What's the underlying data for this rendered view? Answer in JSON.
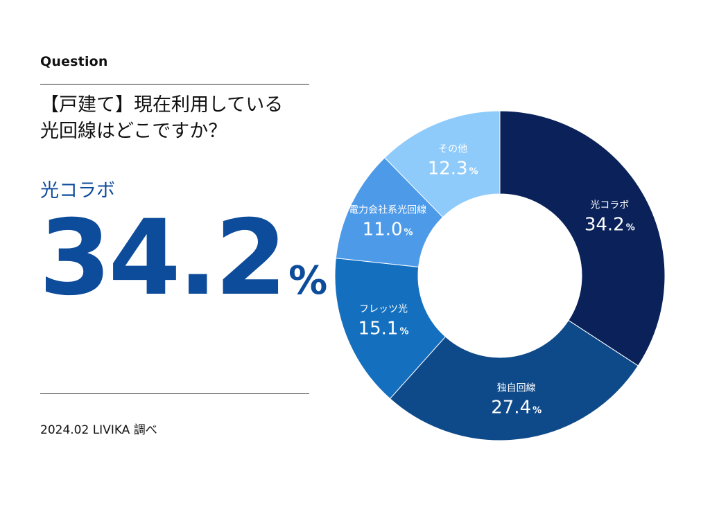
{
  "eyebrow": "Question",
  "question": {
    "line1": "【戸建て】現在利用している",
    "line2": "光回線はどこですか？"
  },
  "highlight": {
    "label": "光コラボ",
    "value": "34.2",
    "unit": "%"
  },
  "source": "2024.02 LIVIKA 調べ",
  "chart_data": {
    "type": "pie",
    "donut": true,
    "unit": "%",
    "categories": [
      "光コラボ",
      "独自回線",
      "フレッツ光",
      "電力会社系光回線",
      "その他"
    ],
    "values": [
      34.2,
      27.4,
      15.1,
      11.0,
      12.3
    ],
    "value_labels": [
      "34.2",
      "27.4",
      "15.1",
      "11.0",
      "12.3"
    ],
    "colors": [
      "#0a2259",
      "#0e4a8a",
      "#1470bf",
      "#4d9ae8",
      "#8ecbfb"
    ],
    "start": "12 o'clock",
    "direction": "clockwise",
    "legend": "none (labels on slices)"
  }
}
